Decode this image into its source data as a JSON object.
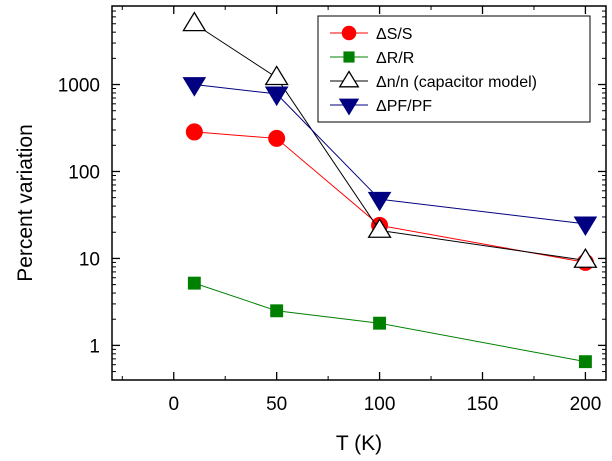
{
  "chart_data": {
    "type": "line",
    "xlabel": "T (K)",
    "ylabel": "Percent variation",
    "xlim": [
      -30,
      210
    ],
    "ylim": [
      0.4,
      8000
    ],
    "yscale": "log",
    "x_ticks": [
      0,
      50,
      100,
      150,
      200
    ],
    "x_tick_labels": [
      "0",
      "50",
      "100",
      "150",
      "200"
    ],
    "y_ticks": [
      1,
      10,
      100,
      1000
    ],
    "y_tick_labels": [
      "1",
      "10",
      "100",
      "1000"
    ],
    "grid": false,
    "legend_position": "top-right",
    "series": [
      {
        "name": "ΔS/S",
        "marker": "circle",
        "color": "#ff0000",
        "x": [
          10,
          50,
          100,
          200
        ],
        "y": [
          285,
          240,
          24,
          9
        ]
      },
      {
        "name": "ΔR/R",
        "marker": "square",
        "color": "#008000",
        "x": [
          10,
          50,
          100,
          200
        ],
        "y": [
          5.2,
          2.5,
          1.8,
          0.65
        ]
      },
      {
        "name": "Δn/n (capacitor model)",
        "marker": "triangle-up-open",
        "color": "#000000",
        "x": [
          10,
          50,
          100,
          200
        ],
        "y": [
          5000,
          1200,
          21,
          9.5
        ]
      },
      {
        "name": "ΔPF/PF",
        "marker": "triangle-down",
        "color": "#000080",
        "x": [
          10,
          50,
          100,
          200
        ],
        "y": [
          1000,
          780,
          48,
          25
        ]
      }
    ]
  }
}
